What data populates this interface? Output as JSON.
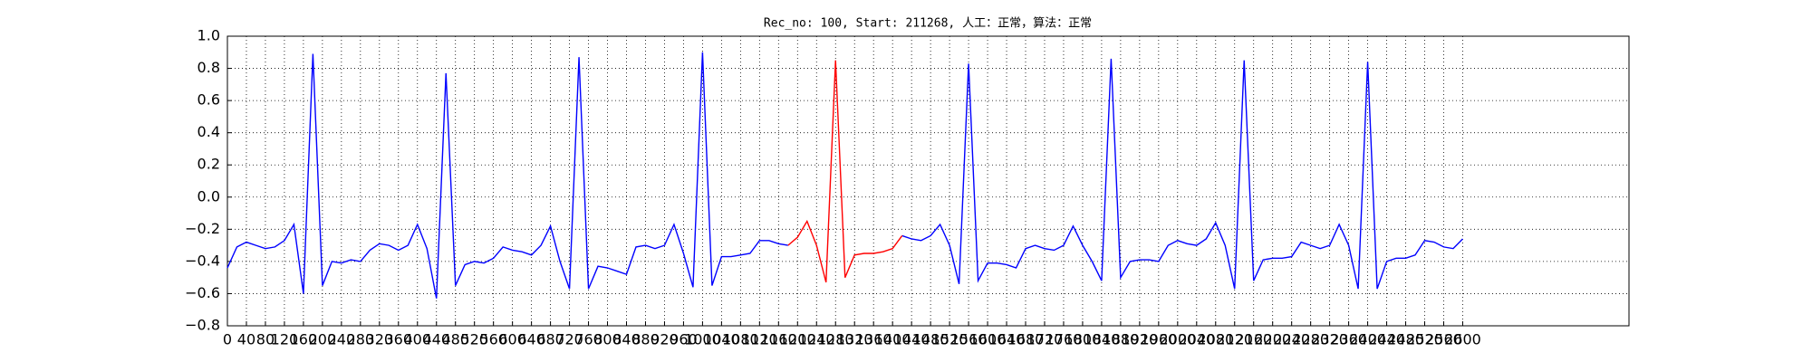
{
  "chart_data": {
    "type": "line",
    "title": "Rec_no: 100, Start: 211268, 人工：正常，算法：正常",
    "x": [
      0,
      20,
      40,
      60,
      80,
      100,
      120,
      140,
      160,
      180,
      200,
      220,
      240,
      260,
      280,
      300,
      320,
      340,
      360,
      380,
      400,
      420,
      440,
      460,
      480,
      500,
      520,
      540,
      560,
      580,
      600,
      620,
      640,
      660,
      680,
      700,
      720,
      740,
      760,
      780,
      800,
      820,
      840,
      860,
      880,
      900,
      920,
      940,
      960,
      980,
      1000,
      1020,
      1040,
      1060,
      1080,
      1100,
      1120,
      1140,
      1160,
      1180,
      1200,
      1220,
      1240,
      1260,
      1280,
      1300,
      1320,
      1340,
      1360,
      1380,
      1400,
      1420,
      1440,
      1460,
      1480,
      1500,
      1520,
      1540,
      1560,
      1580,
      1600,
      1620,
      1640,
      1660,
      1680,
      1700,
      1720,
      1740,
      1760,
      1780,
      1800,
      1820,
      1840,
      1860,
      1880,
      1900,
      1920,
      1940,
      1960,
      1980,
      2000,
      2020,
      2040,
      2060,
      2080,
      2100,
      2120,
      2140,
      2160,
      2180,
      2200,
      2220,
      2240,
      2260,
      2280,
      2300,
      2320,
      2340,
      2360,
      2380,
      2400,
      2420,
      2440,
      2460,
      2480,
      2500,
      2520,
      2540,
      2560,
      2580,
      2600
    ],
    "series": [
      {
        "color": "#0000ff",
        "values": [
          -0.44,
          -0.31,
          -0.28,
          -0.3,
          -0.32,
          -0.31,
          -0.27,
          -0.17,
          -0.6,
          0.89,
          -0.55,
          -0.4,
          -0.41,
          -0.39,
          -0.4,
          -0.33,
          -0.29,
          -0.3,
          -0.33,
          -0.3,
          -0.17,
          -0.32,
          -0.63,
          0.77,
          -0.55,
          -0.42,
          -0.4,
          -0.41,
          -0.38,
          -0.31,
          -0.33,
          -0.34,
          -0.36,
          -0.3,
          -0.18,
          -0.4,
          -0.57,
          0.87,
          -0.57,
          -0.43,
          -0.44,
          -0.46,
          -0.48,
          -0.31,
          -0.3,
          -0.32,
          -0.3,
          -0.17,
          -0.35,
          -0.56,
          0.9,
          -0.55,
          -0.37,
          -0.37,
          -0.36,
          -0.35,
          -0.27,
          -0.27,
          -0.29,
          -0.3,
          null,
          null,
          null,
          null,
          null,
          null,
          null,
          null,
          null,
          null,
          null,
          -0.24,
          -0.26,
          -0.27,
          -0.24,
          -0.17,
          -0.3,
          -0.54,
          0.83,
          -0.52,
          -0.41,
          -0.41,
          -0.42,
          -0.44,
          -0.32,
          -0.3,
          -0.32,
          -0.33,
          -0.3,
          -0.18,
          -0.3,
          -0.4,
          -0.52,
          0.86,
          -0.5,
          -0.4,
          -0.39,
          -0.39,
          -0.4,
          -0.3,
          -0.27,
          -0.29,
          -0.3,
          -0.26,
          -0.16,
          -0.3,
          -0.57,
          0.85,
          -0.52,
          -0.39,
          -0.38,
          -0.38,
          -0.37,
          -0.28,
          -0.3,
          -0.32,
          -0.3,
          -0.17,
          -0.3,
          -0.57,
          0.84,
          -0.57,
          -0.4,
          -0.38,
          -0.38,
          -0.36,
          -0.27,
          -0.28,
          -0.31,
          -0.32,
          -0.26
        ]
      },
      {
        "color": "#ff0000",
        "values": [
          null,
          null,
          null,
          null,
          null,
          null,
          null,
          null,
          null,
          null,
          null,
          null,
          null,
          null,
          null,
          null,
          null,
          null,
          null,
          null,
          null,
          null,
          null,
          null,
          null,
          null,
          null,
          null,
          null,
          null,
          null,
          null,
          null,
          null,
          null,
          null,
          null,
          null,
          null,
          null,
          null,
          null,
          null,
          null,
          null,
          null,
          null,
          null,
          null,
          null,
          null,
          null,
          null,
          null,
          null,
          null,
          null,
          null,
          null,
          -0.3,
          -0.25,
          -0.15,
          -0.3,
          -0.53,
          0.85,
          -0.5,
          -0.36,
          -0.35,
          -0.35,
          -0.34,
          -0.32,
          -0.24,
          null,
          null,
          null,
          null,
          null,
          null,
          null,
          null,
          null,
          null,
          null,
          null,
          null,
          null,
          null,
          null,
          null,
          null,
          null,
          null,
          null,
          null,
          null,
          null,
          null,
          null,
          null,
          null,
          null,
          null,
          null,
          null,
          null,
          null,
          null,
          null,
          null,
          null,
          null,
          null,
          null,
          null,
          null,
          null,
          null,
          null,
          null,
          null,
          null,
          null,
          null,
          null,
          null,
          null,
          null,
          null,
          null,
          null,
          null
        ]
      }
    ],
    "xlim": [
      0,
      2950
    ],
    "xticks": [
      0,
      40,
      80,
      120,
      160,
      200,
      240,
      280,
      320,
      360,
      400,
      440,
      480,
      520,
      560,
      600,
      640,
      680,
      720,
      760,
      800,
      840,
      880,
      920,
      960,
      1000,
      1040,
      1080,
      1120,
      1160,
      1200,
      1240,
      1280,
      1320,
      1360,
      1400,
      1440,
      1480,
      1520,
      1560,
      1600,
      1640,
      1680,
      1720,
      1760,
      1800,
      1840,
      1880,
      1920,
      1960,
      2000,
      2040,
      2080,
      2120,
      2160,
      2200,
      2240,
      2280,
      2320,
      2360,
      2400,
      2440,
      2480,
      2520,
      2560,
      2600
    ],
    "ylim": [
      -0.8,
      1.0
    ],
    "yticks": [
      {
        "value": -0.8,
        "label": "−0.8"
      },
      {
        "value": -0.6,
        "label": "−0.6"
      },
      {
        "value": -0.4,
        "label": "−0.4"
      },
      {
        "value": -0.2,
        "label": "−0.2"
      },
      {
        "value": 0,
        "label": "0.0"
      },
      {
        "value": 0.2,
        "label": "0.2"
      },
      {
        "value": 0.4,
        "label": "0.4"
      },
      {
        "value": 0.6,
        "label": "0.6"
      },
      {
        "value": 0.8,
        "label": "0.8"
      },
      {
        "value": 1.0,
        "label": "1.0"
      }
    ],
    "grid": true
  }
}
